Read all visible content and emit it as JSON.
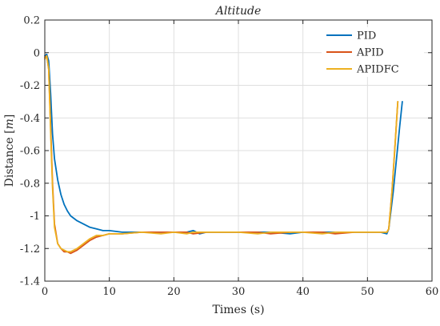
{
  "chart_data": {
    "type": "line",
    "title": "Altitude",
    "xlabel": "Times (s)",
    "ylabel": "Distance [m]",
    "ylabel_plain": "Distance ",
    "ylabel_unit": "m",
    "xlim": [
      0,
      60
    ],
    "ylim": [
      -1.4,
      0.2
    ],
    "xticks": [
      0,
      10,
      20,
      30,
      40,
      50,
      60
    ],
    "yticks": [
      0.2,
      0,
      -0.2,
      -0.4,
      -0.6,
      -0.8,
      -1,
      -1.2,
      -1.4
    ],
    "xtick_labels": [
      "0",
      "10",
      "20",
      "30",
      "40",
      "50",
      "60"
    ],
    "ytick_labels": [
      "0.2",
      "0",
      "-0.2",
      "-0.4",
      "-0.6",
      "-0.8",
      "-1",
      "-1.2",
      "-1.4"
    ],
    "grid": true,
    "legend_position": "top-right",
    "series": [
      {
        "name": "PID",
        "color": "#0072BD",
        "x": [
          0,
          0.3,
          0.6,
          0.9,
          1.2,
          1.5,
          2,
          2.5,
          3,
          3.5,
          4,
          5,
          6,
          7,
          8,
          9,
          10,
          12,
          15,
          18,
          20,
          22,
          23,
          24,
          25,
          28,
          30,
          33,
          35,
          38,
          40,
          43,
          45,
          48,
          50,
          52,
          53,
          53.3,
          54,
          54.5,
          55,
          55.4
        ],
        "y": [
          -0.02,
          -0.01,
          -0.05,
          -0.25,
          -0.5,
          -0.65,
          -0.78,
          -0.87,
          -0.93,
          -0.97,
          -1.0,
          -1.03,
          -1.05,
          -1.07,
          -1.08,
          -1.09,
          -1.09,
          -1.1,
          -1.1,
          -1.1,
          -1.1,
          -1.1,
          -1.09,
          -1.11,
          -1.1,
          -1.1,
          -1.1,
          -1.1,
          -1.1,
          -1.11,
          -1.1,
          -1.1,
          -1.1,
          -1.1,
          -1.1,
          -1.1,
          -1.11,
          -1.08,
          -0.85,
          -0.65,
          -0.45,
          -0.3
        ]
      },
      {
        "name": "APID",
        "color": "#D95319",
        "x": [
          0,
          0.3,
          0.6,
          0.9,
          1.2,
          1.5,
          2,
          2.5,
          3,
          3.5,
          4,
          5,
          6,
          7,
          8,
          9,
          10,
          12,
          15,
          18,
          20,
          22,
          23,
          25,
          28,
          30,
          33,
          35,
          38,
          40,
          43,
          45,
          48,
          50,
          52,
          53,
          53.3,
          53.8,
          54.3,
          54.7
        ],
        "y": [
          -0.03,
          -0.02,
          -0.1,
          -0.45,
          -0.8,
          -1.05,
          -1.17,
          -1.2,
          -1.22,
          -1.22,
          -1.23,
          -1.21,
          -1.18,
          -1.15,
          -1.13,
          -1.12,
          -1.11,
          -1.11,
          -1.1,
          -1.1,
          -1.1,
          -1.1,
          -1.11,
          -1.1,
          -1.1,
          -1.1,
          -1.1,
          -1.11,
          -1.1,
          -1.1,
          -1.1,
          -1.11,
          -1.1,
          -1.1,
          -1.1,
          -1.1,
          -1.08,
          -0.85,
          -0.55,
          -0.3
        ]
      },
      {
        "name": "APIDFC",
        "color": "#EDB120",
        "x": [
          0,
          0.3,
          0.6,
          0.9,
          1.2,
          1.5,
          2,
          2.5,
          3,
          3.5,
          4,
          5,
          6,
          7,
          8,
          9,
          10,
          12,
          15,
          18,
          20,
          22,
          23,
          25,
          28,
          30,
          33,
          35,
          38,
          40,
          43,
          45,
          48,
          50,
          52,
          53,
          53.3,
          53.8,
          54.3,
          54.7
        ],
        "y": [
          -0.04,
          -0.02,
          -0.1,
          -0.48,
          -0.83,
          -1.07,
          -1.17,
          -1.2,
          -1.21,
          -1.22,
          -1.22,
          -1.2,
          -1.17,
          -1.14,
          -1.12,
          -1.12,
          -1.11,
          -1.11,
          -1.1,
          -1.11,
          -1.1,
          -1.11,
          -1.1,
          -1.1,
          -1.1,
          -1.1,
          -1.11,
          -1.1,
          -1.1,
          -1.1,
          -1.11,
          -1.1,
          -1.1,
          -1.1,
          -1.1,
          -1.1,
          -1.08,
          -0.85,
          -0.55,
          -0.3
        ]
      }
    ]
  },
  "colors": {
    "axis": "#262626",
    "grid": "#dfdfdf"
  }
}
